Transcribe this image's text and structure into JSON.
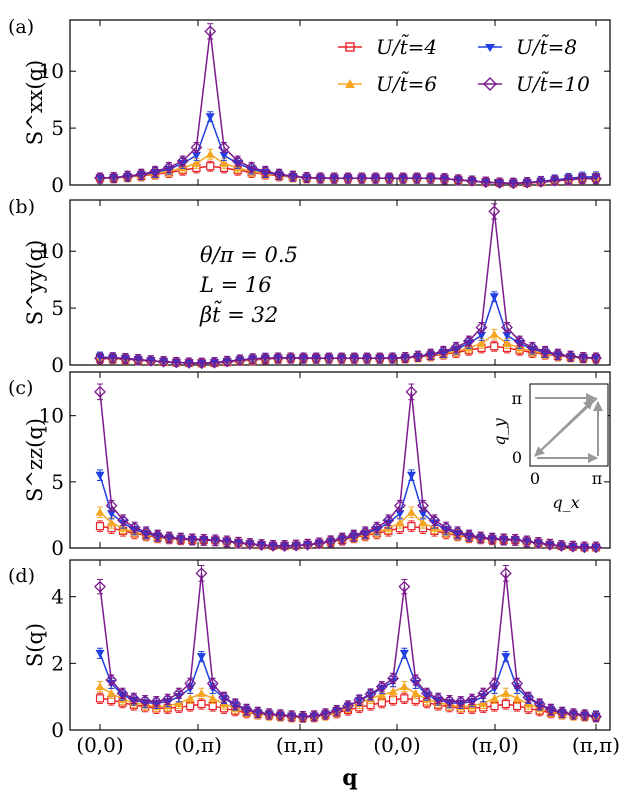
{
  "chart_data": {
    "type": "line",
    "xlabel": "q",
    "x_tick_labels": [
      "(0,0)",
      "(0,π)",
      "(π,π)",
      "(0,0)",
      "(π,0)",
      "(π,π)"
    ],
    "series_names": [
      "U/t̃=4",
      "U/t̃=6",
      "U/t̃=8",
      "U/t̃=10"
    ],
    "series_colors": [
      "#e8232a",
      "#f5a623",
      "#1f3fe0",
      "#7b1a8c"
    ],
    "parameters": [
      "θ/π = 0.5",
      "L = 16",
      "βt̃ = 32"
    ],
    "inset": {
      "xlabel": "q_x",
      "ylabel": "q_y",
      "x_ticks": [
        "0",
        "π"
      ],
      "y_ticks": [
        "0",
        "π"
      ]
    },
    "panels": [
      {
        "label": "(a)",
        "ylabel": "S^xx(q)",
        "ylim": [
          0,
          14.5
        ],
        "yticks": [
          0,
          5,
          10
        ],
        "series": [
          {
            "name": "U/t̃=4",
            "values": [
              0.6,
              0.62,
              0.7,
              0.8,
              0.95,
              1.1,
              1.3,
              1.5,
              1.65,
              1.5,
              1.3,
              1.1,
              0.95,
              0.8,
              0.7,
              0.62,
              0.6,
              0.6,
              0.6,
              0.6,
              0.6,
              0.6,
              0.6,
              0.6,
              0.6,
              0.55,
              0.45,
              0.35,
              0.25,
              0.18,
              0.15,
              0.18,
              0.25,
              0.35,
              0.45,
              0.55,
              0.6
            ]
          },
          {
            "name": "U/t̃=6",
            "values": [
              0.6,
              0.62,
              0.7,
              0.85,
              1.0,
              1.2,
              1.5,
              1.9,
              2.7,
              1.9,
              1.5,
              1.2,
              1.0,
              0.85,
              0.7,
              0.62,
              0.6,
              0.6,
              0.6,
              0.6,
              0.6,
              0.6,
              0.6,
              0.6,
              0.6,
              0.55,
              0.45,
              0.35,
              0.25,
              0.18,
              0.15,
              0.2,
              0.28,
              0.38,
              0.48,
              0.58,
              0.62
            ]
          },
          {
            "name": "U/t̃=8",
            "values": [
              0.6,
              0.65,
              0.75,
              0.9,
              1.1,
              1.4,
              1.9,
              2.6,
              6.0,
              2.6,
              1.9,
              1.4,
              1.1,
              0.9,
              0.75,
              0.65,
              0.6,
              0.6,
              0.6,
              0.6,
              0.6,
              0.6,
              0.6,
              0.6,
              0.6,
              0.55,
              0.45,
              0.35,
              0.25,
              0.18,
              0.15,
              0.22,
              0.32,
              0.45,
              0.58,
              0.7,
              0.72
            ]
          },
          {
            "name": "U/t̃=10",
            "values": [
              0.62,
              0.65,
              0.78,
              0.95,
              1.2,
              1.55,
              2.1,
              3.3,
              13.5,
              3.3,
              2.1,
              1.55,
              1.2,
              0.95,
              0.78,
              0.65,
              0.62,
              0.6,
              0.6,
              0.6,
              0.6,
              0.6,
              0.6,
              0.6,
              0.6,
              0.55,
              0.45,
              0.35,
              0.25,
              0.18,
              0.15,
              0.2,
              0.28,
              0.38,
              0.48,
              0.58,
              0.55
            ]
          }
        ]
      },
      {
        "label": "(b)",
        "ylabel": "S^yy(q)",
        "ylim": [
          0,
          14.5
        ],
        "yticks": [
          0,
          5,
          10
        ],
        "series": [
          {
            "name": "U/t̃=4",
            "values": [
              0.55,
              0.55,
              0.5,
              0.42,
              0.35,
              0.28,
              0.22,
              0.18,
              0.15,
              0.18,
              0.25,
              0.35,
              0.45,
              0.52,
              0.58,
              0.6,
              0.6,
              0.6,
              0.6,
              0.6,
              0.6,
              0.6,
              0.6,
              0.6,
              0.62,
              0.7,
              0.8,
              0.95,
              1.1,
              1.3,
              1.5,
              1.65,
              1.5,
              1.3,
              1.1,
              0.95,
              0.8,
              0.7,
              0.62,
              0.6
            ]
          },
          {
            "name": "U/t̃=6",
            "values": [
              0.6,
              0.58,
              0.52,
              0.44,
              0.36,
              0.28,
              0.22,
              0.18,
              0.15,
              0.2,
              0.28,
              0.38,
              0.48,
              0.55,
              0.6,
              0.6,
              0.6,
              0.6,
              0.6,
              0.6,
              0.6,
              0.6,
              0.6,
              0.6,
              0.62,
              0.7,
              0.85,
              1.0,
              1.2,
              1.5,
              1.9,
              2.7,
              1.9,
              1.5,
              1.2,
              1.0,
              0.85,
              0.7,
              0.62,
              0.6
            ]
          },
          {
            "name": "U/t̃=8",
            "values": [
              0.7,
              0.65,
              0.58,
              0.48,
              0.38,
              0.3,
              0.22,
              0.18,
              0.15,
              0.22,
              0.32,
              0.45,
              0.55,
              0.6,
              0.62,
              0.62,
              0.6,
              0.6,
              0.6,
              0.6,
              0.6,
              0.6,
              0.6,
              0.6,
              0.65,
              0.75,
              0.9,
              1.1,
              1.4,
              1.9,
              2.6,
              6.0,
              2.6,
              1.9,
              1.4,
              1.1,
              0.9,
              0.75,
              0.65,
              0.6
            ]
          },
          {
            "name": "U/t̃=10",
            "values": [
              0.6,
              0.62,
              0.55,
              0.46,
              0.37,
              0.29,
              0.22,
              0.18,
              0.15,
              0.2,
              0.3,
              0.42,
              0.52,
              0.58,
              0.62,
              0.62,
              0.62,
              0.6,
              0.6,
              0.6,
              0.6,
              0.6,
              0.6,
              0.62,
              0.65,
              0.78,
              0.95,
              1.2,
              1.55,
              2.1,
              3.3,
              13.5,
              3.3,
              2.1,
              1.55,
              1.2,
              0.95,
              0.78,
              0.65,
              0.62
            ]
          }
        ]
      },
      {
        "label": "(c)",
        "ylabel": "S^zz(q)",
        "ylim": [
          0,
          13.3
        ],
        "yticks": [
          0,
          5,
          10
        ],
        "series": [
          {
            "name": "U/t̃=4",
            "values": [
              1.65,
              1.5,
              1.3,
              1.1,
              0.95,
              0.8,
              0.72,
              0.65,
              0.62,
              0.6,
              0.58,
              0.5,
              0.4,
              0.3,
              0.22,
              0.16,
              0.15,
              0.18,
              0.25,
              0.35,
              0.48,
              0.62,
              0.8,
              0.95,
              1.1,
              1.3,
              1.5,
              1.65,
              1.5,
              1.3,
              1.1,
              0.95,
              0.8,
              0.72,
              0.65,
              0.62,
              0.6,
              0.5,
              0.38,
              0.25,
              0.15,
              0.1,
              0.05,
              0.05
            ]
          },
          {
            "name": "U/t̃=6",
            "values": [
              2.7,
              1.9,
              1.5,
              1.2,
              1.0,
              0.85,
              0.75,
              0.68,
              0.64,
              0.62,
              0.58,
              0.5,
              0.4,
              0.3,
              0.22,
              0.16,
              0.15,
              0.18,
              0.25,
              0.35,
              0.5,
              0.68,
              0.85,
              1.0,
              1.2,
              1.5,
              1.9,
              2.7,
              1.9,
              1.5,
              1.2,
              1.0,
              0.85,
              0.75,
              0.68,
              0.64,
              0.62,
              0.5,
              0.38,
              0.25,
              0.15,
              0.1,
              0.05,
              0.05
            ]
          },
          {
            "name": "U/t̃=8",
            "values": [
              5.5,
              2.6,
              1.9,
              1.4,
              1.1,
              0.9,
              0.78,
              0.7,
              0.65,
              0.62,
              0.58,
              0.5,
              0.4,
              0.3,
              0.22,
              0.16,
              0.15,
              0.18,
              0.25,
              0.35,
              0.5,
              0.7,
              0.9,
              1.1,
              1.4,
              1.9,
              2.6,
              5.5,
              2.6,
              1.9,
              1.4,
              1.1,
              0.9,
              0.78,
              0.7,
              0.65,
              0.62,
              0.5,
              0.38,
              0.25,
              0.15,
              0.1,
              0.05,
              0.05
            ]
          },
          {
            "name": "U/t̃=10",
            "values": [
              11.8,
              3.2,
              2.1,
              1.55,
              1.2,
              0.95,
              0.8,
              0.72,
              0.66,
              0.62,
              0.58,
              0.5,
              0.4,
              0.3,
              0.22,
              0.16,
              0.15,
              0.18,
              0.25,
              0.35,
              0.52,
              0.72,
              0.95,
              1.2,
              1.55,
              2.1,
              3.2,
              11.8,
              3.2,
              2.1,
              1.55,
              1.2,
              0.95,
              0.8,
              0.72,
              0.66,
              0.62,
              0.5,
              0.38,
              0.25,
              0.15,
              0.1,
              0.05,
              0.05
            ]
          }
        ]
      },
      {
        "label": "(d)",
        "ylabel": "S(q)",
        "ylim": [
          0,
          5.1
        ],
        "yticks": [
          0,
          2,
          4
        ],
        "series": [
          {
            "name": "U/t̃=4",
            "values": [
              0.95,
              0.9,
              0.82,
              0.75,
              0.7,
              0.65,
              0.65,
              0.68,
              0.72,
              0.78,
              0.72,
              0.65,
              0.58,
              0.52,
              0.48,
              0.45,
              0.42,
              0.4,
              0.38,
              0.4,
              0.45,
              0.52,
              0.6,
              0.68,
              0.75,
              0.82,
              0.9,
              0.95,
              0.9,
              0.82,
              0.75,
              0.7,
              0.65,
              0.65,
              0.68,
              0.72,
              0.78,
              0.72,
              0.65,
              0.58,
              0.52,
              0.48,
              0.45,
              0.42,
              0.4
            ]
          },
          {
            "name": "U/t̃=6",
            "values": [
              1.3,
              1.1,
              0.92,
              0.82,
              0.75,
              0.7,
              0.72,
              0.8,
              0.95,
              1.1,
              0.95,
              0.78,
              0.65,
              0.55,
              0.48,
              0.45,
              0.42,
              0.4,
              0.38,
              0.4,
              0.45,
              0.55,
              0.68,
              0.8,
              0.95,
              1.05,
              1.15,
              1.3,
              1.1,
              0.92,
              0.82,
              0.75,
              0.7,
              0.72,
              0.8,
              0.95,
              1.1,
              0.95,
              0.78,
              0.65,
              0.55,
              0.48,
              0.45,
              0.42,
              0.4
            ]
          },
          {
            "name": "U/t̃=8",
            "values": [
              2.3,
              1.4,
              1.05,
              0.9,
              0.82,
              0.8,
              0.85,
              1.0,
              1.25,
              2.2,
              1.25,
              0.95,
              0.75,
              0.6,
              0.52,
              0.48,
              0.45,
              0.42,
              0.4,
              0.42,
              0.48,
              0.58,
              0.72,
              0.88,
              1.05,
              1.25,
              1.45,
              2.3,
              1.4,
              1.05,
              0.9,
              0.82,
              0.8,
              0.85,
              1.0,
              1.25,
              2.2,
              1.25,
              0.95,
              0.75,
              0.6,
              0.52,
              0.48,
              0.45,
              0.42
            ]
          },
          {
            "name": "U/t̃=10",
            "values": [
              4.3,
              1.5,
              1.1,
              0.95,
              0.88,
              0.85,
              0.92,
              1.1,
              1.4,
              4.7,
              1.4,
              0.98,
              0.78,
              0.62,
              0.53,
              0.48,
              0.45,
              0.42,
              0.4,
              0.42,
              0.48,
              0.58,
              0.72,
              0.9,
              1.08,
              1.3,
              1.55,
              4.3,
              1.5,
              1.1,
              0.95,
              0.88,
              0.85,
              0.92,
              1.1,
              1.4,
              4.7,
              1.4,
              0.98,
              0.78,
              0.62,
              0.53,
              0.48,
              0.45,
              0.4
            ]
          }
        ]
      }
    ]
  }
}
